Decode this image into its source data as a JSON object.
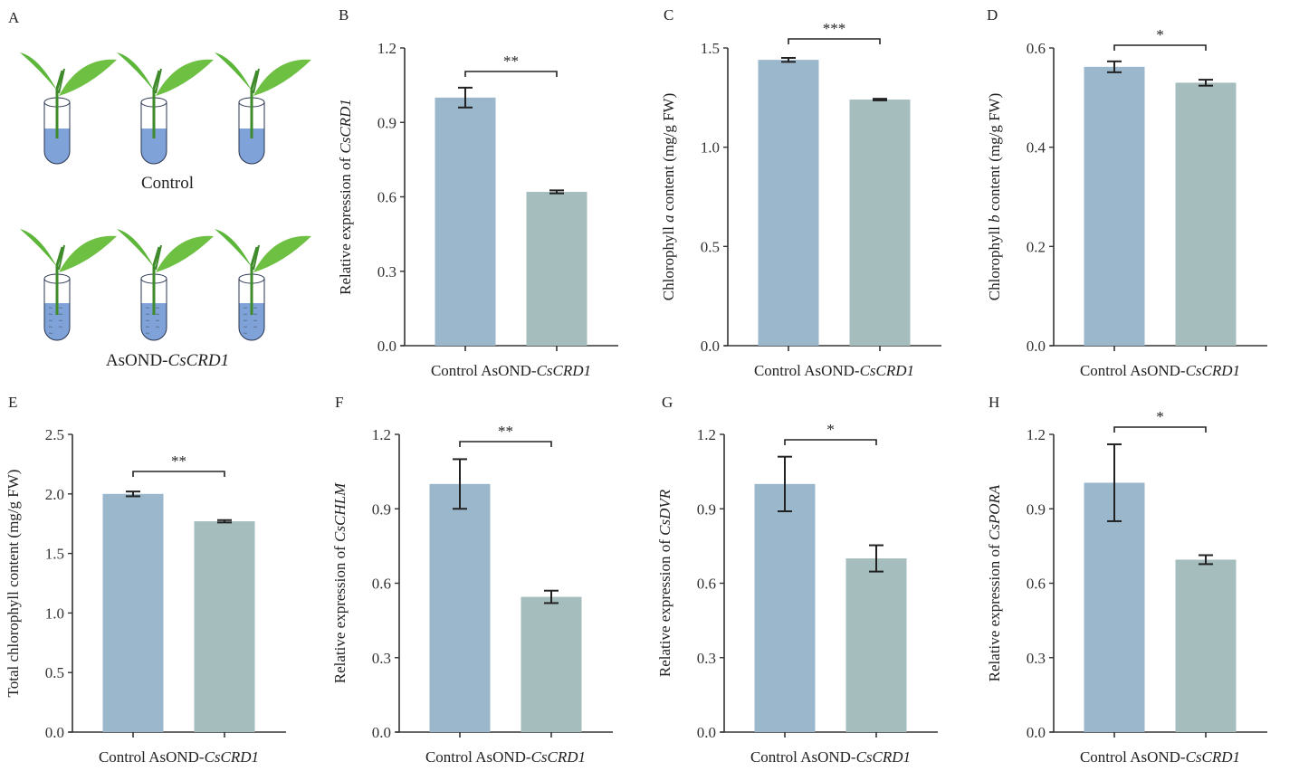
{
  "figure": {
    "panel_a": {
      "letter": "A",
      "groups": [
        {
          "label": "Control",
          "label_italic": ""
        },
        {
          "label": "AsOND-",
          "label_italic": "CsCRD1"
        }
      ],
      "icons": [
        "tea-shoot-in-tube-icon"
      ]
    }
  },
  "colors": {
    "control_bar": "#9bb7cc",
    "treated_bar": "#a5bdbc",
    "axis": "#333333",
    "liquid": "#7fa3d8",
    "leaf": "#5cb63a"
  },
  "chart_data": [
    {
      "panel": "B",
      "type": "bar",
      "categories": [
        "Control",
        "AsOND-CsCRD1"
      ],
      "category_parts": [
        [
          "Control",
          ""
        ],
        [
          "AsOND-",
          "CsCRD1"
        ]
      ],
      "values": [
        1.0,
        0.62
      ],
      "errors": [
        0.04,
        0.006
      ],
      "ylabel_parts": [
        "Relative expression of ",
        "CsCRD1",
        ""
      ],
      "ylim": [
        0,
        1.2
      ],
      "yticks": [
        "0.0",
        "0.3",
        "0.6",
        "0.9",
        "1.2"
      ],
      "significance": "**"
    },
    {
      "panel": "C",
      "type": "bar",
      "categories": [
        "Control",
        "AsOND-CsCRD1"
      ],
      "category_parts": [
        [
          "Control",
          ""
        ],
        [
          "AsOND-",
          "CsCRD1"
        ]
      ],
      "values": [
        1.44,
        1.24
      ],
      "errors": [
        0.01,
        0.004
      ],
      "ylabel_parts": [
        "Chlorophyll ",
        "a",
        " content (mg/g FW)"
      ],
      "ylim": [
        0,
        1.5
      ],
      "yticks": [
        "0.0",
        "0.5",
        "1.0",
        "1.5"
      ],
      "significance": "***"
    },
    {
      "panel": "D",
      "type": "bar",
      "categories": [
        "Control",
        "AsOND-CsCRD1"
      ],
      "category_parts": [
        [
          "Control",
          ""
        ],
        [
          "AsOND-",
          "CsCRD1"
        ]
      ],
      "values": [
        0.562,
        0.53
      ],
      "errors": [
        0.011,
        0.006
      ],
      "ylabel_parts": [
        "Chlorophyll ",
        "b",
        " content (mg/g FW)"
      ],
      "ylim": [
        0,
        0.6
      ],
      "yticks": [
        "0.0",
        "0.2",
        "0.4",
        "0.6"
      ],
      "significance": "*"
    },
    {
      "panel": "E",
      "type": "bar",
      "categories": [
        "Control",
        "AsOND-CsCRD1"
      ],
      "category_parts": [
        [
          "Control",
          ""
        ],
        [
          "AsOND-",
          "CsCRD1"
        ]
      ],
      "values": [
        2.0,
        1.77
      ],
      "errors": [
        0.02,
        0.01
      ],
      "ylabel_parts": [
        "Total chlorophyll content (mg/g FW)",
        "",
        ""
      ],
      "ylim": [
        0,
        2.5
      ],
      "yticks": [
        "0.0",
        "0.5",
        "1.0",
        "1.5",
        "2.0",
        "2.5"
      ],
      "significance": "**"
    },
    {
      "panel": "F",
      "type": "bar",
      "categories": [
        "Control",
        "AsOND-CsCRD1"
      ],
      "category_parts": [
        [
          "Control",
          ""
        ],
        [
          "AsOND-",
          "CsCRD1"
        ]
      ],
      "values": [
        1.0,
        0.545
      ],
      "errors": [
        0.1,
        0.025
      ],
      "ylabel_parts": [
        "Relative expression of ",
        "CsCHLM",
        ""
      ],
      "ylim": [
        0,
        1.2
      ],
      "yticks": [
        "0.0",
        "0.3",
        "0.6",
        "0.9",
        "1.2"
      ],
      "significance": "**"
    },
    {
      "panel": "G",
      "type": "bar",
      "categories": [
        "Control",
        "AsOND-CsCRD1"
      ],
      "category_parts": [
        [
          "Control",
          ""
        ],
        [
          "AsOND-",
          "CsCRD1"
        ]
      ],
      "values": [
        1.0,
        0.7
      ],
      "errors": [
        0.11,
        0.053
      ],
      "ylabel_parts": [
        "Relative expression of ",
        "CsDVR",
        ""
      ],
      "ylim": [
        0,
        1.2
      ],
      "yticks": [
        "0.0",
        "0.3",
        "0.6",
        "0.9",
        "1.2"
      ],
      "significance": "*"
    },
    {
      "panel": "H",
      "type": "bar",
      "categories": [
        "Control",
        "AsOND-CsCRD1"
      ],
      "category_parts": [
        [
          "Control",
          ""
        ],
        [
          "AsOND-",
          "CsCRD1"
        ]
      ],
      "values": [
        1.005,
        0.695
      ],
      "errors": [
        0.155,
        0.018
      ],
      "ylabel_parts": [
        "Relative expression of ",
        "CsPORA",
        ""
      ],
      "ylim": [
        0,
        1.2
      ],
      "yticks": [
        "0.0",
        "0.3",
        "0.6",
        "0.9",
        "1.2"
      ],
      "significance": "*"
    }
  ]
}
